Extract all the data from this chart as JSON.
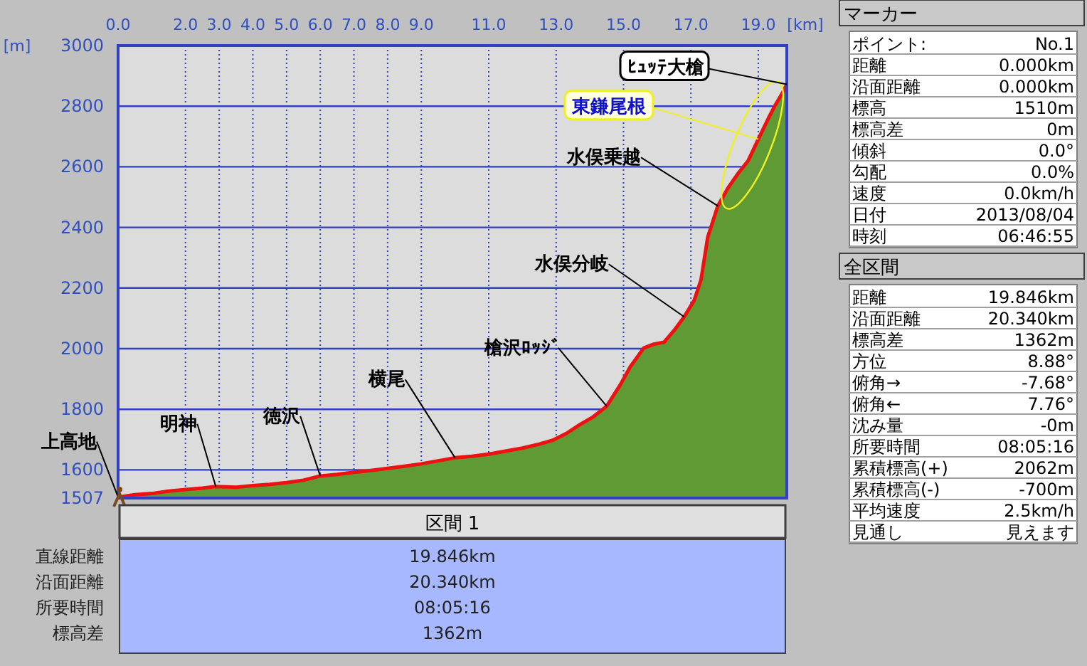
{
  "chart_data": {
    "type": "area",
    "xlabel": "[km]",
    "ylabel": "[m]",
    "x": [
      0,
      0.5,
      1,
      1.5,
      2,
      2.5,
      2.9,
      3.5,
      4,
      4.5,
      5,
      5.5,
      6,
      6.5,
      7,
      7.5,
      8,
      8.5,
      9,
      9.5,
      10,
      10.5,
      11,
      11.5,
      12,
      12.5,
      12.9,
      13.3,
      13.7,
      14.1,
      14.5,
      14.9,
      15.2,
      15.6,
      15.9,
      16.2,
      16.5,
      16.8,
      17.1,
      17.3,
      17.5,
      17.8,
      18.1,
      18.4,
      18.7,
      19,
      19.3,
      19.5,
      19.7,
      19.846
    ],
    "series": [
      {
        "color": "#5f9a35",
        "values": [
          1510,
          1518,
          1522,
          1530,
          1535,
          1540,
          1545,
          1543,
          1548,
          1552,
          1558,
          1566,
          1580,
          1585,
          1592,
          1598,
          1605,
          1612,
          1620,
          1630,
          1640,
          1645,
          1652,
          1662,
          1672,
          1685,
          1698,
          1720,
          1749,
          1775,
          1810,
          1880,
          1940,
          2002,
          2015,
          2021,
          2060,
          2105,
          2160,
          2227,
          2368,
          2471,
          2530,
          2578,
          2620,
          2691,
          2760,
          2803,
          2840,
          2872
        ]
      }
    ],
    "xlim": [
      0,
      19.846
    ],
    "xticks": [
      {
        "value": 0,
        "label": "0.0"
      },
      {
        "value": 2,
        "label": "2.0"
      },
      {
        "value": 3,
        "label": "3.0"
      },
      {
        "value": 4,
        "label": "4.0"
      },
      {
        "value": 5,
        "label": "5.0"
      },
      {
        "value": 6,
        "label": "6.0"
      },
      {
        "value": 7,
        "label": "7.0"
      },
      {
        "value": 8,
        "label": "8.0"
      },
      {
        "value": 9,
        "label": "9.0"
      },
      {
        "value": 11,
        "label": "11.0"
      },
      {
        "value": 13,
        "label": "13.0"
      },
      {
        "value": 15,
        "label": "15.0"
      },
      {
        "value": 17,
        "label": "17.0"
      },
      {
        "value": 19,
        "label": "19.0"
      }
    ],
    "ylim": [
      1507,
      3000
    ],
    "yticks": [
      1507,
      1600,
      1800,
      2000,
      2200,
      2400,
      2600,
      2800,
      3000
    ],
    "grid": true,
    "annotations": [
      {
        "text": "上高地",
        "x": 0,
        "y": 1510
      },
      {
        "text": "明神",
        "x": 2.9,
        "y": 1545
      },
      {
        "text": "徳沢",
        "x": 6,
        "y": 1580
      },
      {
        "text": "横尾",
        "x": 10,
        "y": 1640
      },
      {
        "text": "槍沢ﾛｯｼﾞ",
        "x": 14.5,
        "y": 1810
      },
      {
        "text": "水俣分岐",
        "x": 16.8,
        "y": 2105
      },
      {
        "text": "水俣乗越",
        "x": 17.8,
        "y": 2471
      },
      {
        "text": "東鎌尾根",
        "x": 19,
        "y": 2691
      },
      {
        "text": "ﾋｭｯﾃ大槍",
        "x": 19.846,
        "y": 2872
      },
      "マーカー",
      "ポイント:",
      "No.1",
      "距離",
      "0.000km",
      "沿面距離",
      "0.000km",
      "標高",
      "1510m",
      "標高差",
      "0m",
      "傾斜",
      "0.0°",
      "勾配",
      "0.0%",
      "速度",
      "0.0km/h",
      "日付",
      "2013/08/04",
      "時刻",
      "06:46:55",
      "全区間",
      "距離",
      "19.846km",
      "沿面距離",
      "20.340km",
      "標高差",
      "1362m",
      "方位",
      "8.88°",
      "俯角→",
      "-7.68°",
      "俯角←",
      "7.76°",
      "沈み量",
      "-0m",
      "所要時間",
      "08:05:16",
      "累積標高(+)",
      "2062m",
      "累積標高(-)",
      "-700m",
      "平均速度",
      "2.5km/h",
      "見通し",
      "見えます",
      "区間 1",
      "直線距離",
      "19.846km",
      "沿面距離",
      "20.340km",
      "所要時間",
      "08:05:16",
      "標高差",
      "1362m"
    ]
  }
}
